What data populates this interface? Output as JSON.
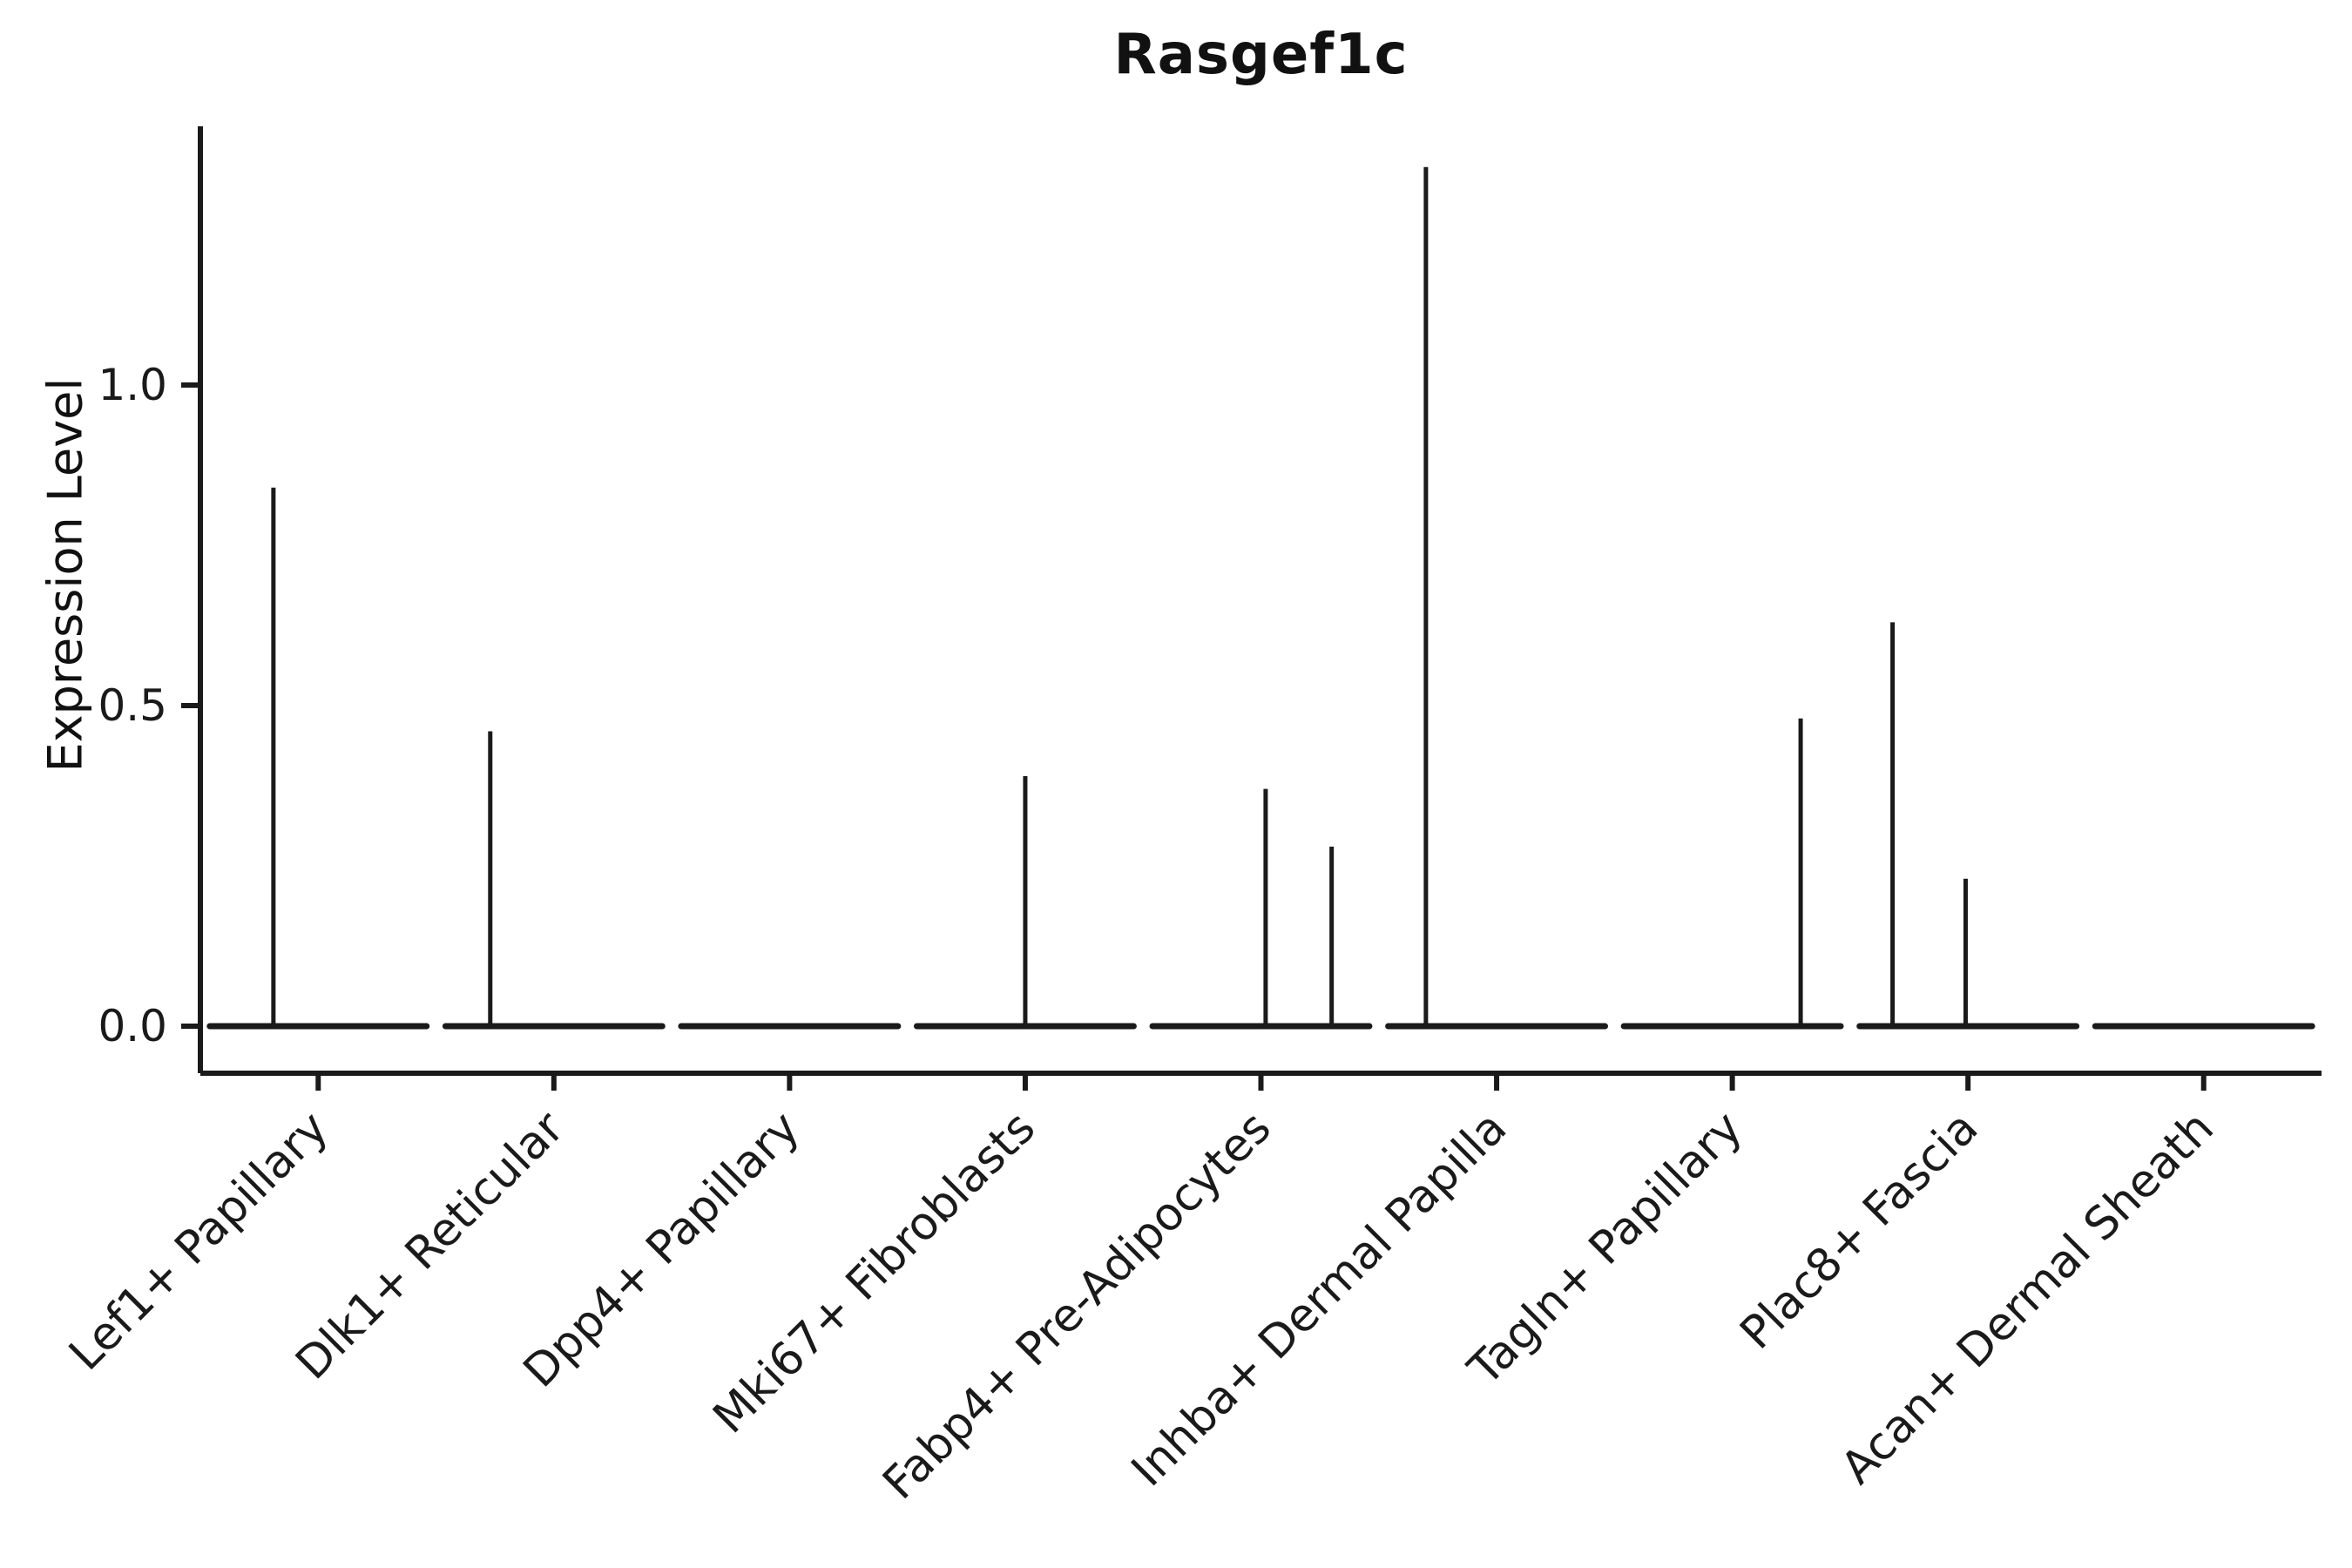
{
  "figure": {
    "background": "#ffffff",
    "ink": "#1a1a1a"
  },
  "chart_data": {
    "type": "violin",
    "title": "Rasgef1c",
    "xlabel": "",
    "ylabel": "Expression Level",
    "ylim": [
      -0.07,
      1.4
    ],
    "yticks": [
      "0.0",
      "0.5",
      "1.0"
    ],
    "ytick_values": [
      0.0,
      0.5,
      1.0
    ],
    "grid": false,
    "legend": "none",
    "categories": [
      "Lef1+ Papillary",
      "Dlk1+ Reticular",
      "Dpp4+ Papillary",
      "Mki67+ Fibroblasts",
      "Fabp4+ Pre-Adipocytes",
      "Inhba+ Dermal Papilla",
      "Tagln+ Papillary",
      "Plac8+ Fascia",
      "Acan+ Dermal Sheath"
    ],
    "violins": [
      {
        "category": "Lef1+ Papillary",
        "baseline": 0.0,
        "spikes": [
          {
            "value": 0.84,
            "offset": -0.19
          }
        ]
      },
      {
        "category": "Dlk1+ Reticular",
        "baseline": 0.0,
        "spikes": [
          {
            "value": 0.46,
            "offset": -0.27
          }
        ]
      },
      {
        "category": "Dpp4+ Papillary",
        "baseline": 0.0,
        "spikes": []
      },
      {
        "category": "Mki67+ Fibroblasts",
        "baseline": 0.0,
        "spikes": [
          {
            "value": 0.39,
            "offset": 0.0
          }
        ]
      },
      {
        "category": "Fabp4+ Pre-Adipocytes",
        "baseline": 0.0,
        "spikes": [
          {
            "value": 0.37,
            "offset": 0.02
          },
          {
            "value": 0.28,
            "offset": 0.3
          }
        ]
      },
      {
        "category": "Inhba+ Dermal Papilla",
        "baseline": 0.0,
        "spikes": [
          {
            "value": 1.34,
            "offset": -0.3
          }
        ]
      },
      {
        "category": "Tagln+ Papillary",
        "baseline": 0.0,
        "spikes": [
          {
            "value": 0.48,
            "offset": 0.29
          }
        ]
      },
      {
        "category": "Plac8+ Fascia",
        "baseline": 0.0,
        "spikes": [
          {
            "value": 0.63,
            "offset": -0.32
          },
          {
            "value": 0.23,
            "offset": -0.01
          }
        ]
      },
      {
        "category": "Acan+ Dermal Sheath",
        "baseline": 0.0,
        "spikes": []
      }
    ]
  }
}
